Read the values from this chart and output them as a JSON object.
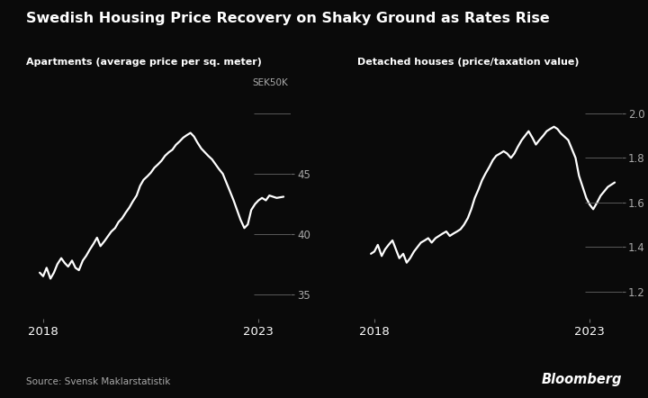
{
  "title": "Swedish Housing Price Recovery on Shaky Ground as Rates Rise",
  "left_subtitle": "Apartments (average price per sq. meter)",
  "right_subtitle": "Detached houses (price/taxation value)",
  "source": "Source: Svensk Maklarstatistik",
  "bloomberg": "Bloomberg",
  "background_color": "#0a0a0a",
  "text_color": "#ffffff",
  "line_color": "#ffffff",
  "axis_color": "#666666",
  "tick_label_color": "#aaaaaa",
  "left_yticks": [
    35,
    40,
    45
  ],
  "left_ytick_labels": [
    "35",
    "40",
    "45"
  ],
  "left_ylabel_top": "SEK50K",
  "left_ylim": [
    33.0,
    51.5
  ],
  "right_yticks": [
    1.2,
    1.4,
    1.6,
    1.8,
    2.0
  ],
  "right_ytick_labels": [
    "1.2",
    "1.4",
    "1.6",
    "1.8",
    "2.0"
  ],
  "right_ylim": [
    1.08,
    2.08
  ],
  "left_x": [
    2017.92,
    2018.0,
    2018.08,
    2018.17,
    2018.25,
    2018.33,
    2018.42,
    2018.5,
    2018.58,
    2018.67,
    2018.75,
    2018.83,
    2018.92,
    2019.0,
    2019.08,
    2019.17,
    2019.25,
    2019.33,
    2019.42,
    2019.5,
    2019.58,
    2019.67,
    2019.75,
    2019.83,
    2019.92,
    2020.0,
    2020.08,
    2020.17,
    2020.25,
    2020.33,
    2020.42,
    2020.5,
    2020.58,
    2020.67,
    2020.75,
    2020.83,
    2020.92,
    2021.0,
    2021.08,
    2021.17,
    2021.25,
    2021.33,
    2021.42,
    2021.5,
    2021.58,
    2021.67,
    2021.75,
    2021.83,
    2021.92,
    2022.0,
    2022.08,
    2022.17,
    2022.25,
    2022.33,
    2022.42,
    2022.5,
    2022.58,
    2022.67,
    2022.75,
    2022.83,
    2022.92,
    2023.0,
    2023.08,
    2023.17,
    2023.25,
    2023.42,
    2023.58
  ],
  "left_y": [
    36.8,
    36.5,
    37.2,
    36.3,
    36.8,
    37.5,
    38.0,
    37.6,
    37.3,
    37.8,
    37.2,
    37.0,
    37.8,
    38.2,
    38.7,
    39.2,
    39.7,
    39.0,
    39.4,
    39.8,
    40.2,
    40.5,
    41.0,
    41.3,
    41.8,
    42.2,
    42.7,
    43.2,
    44.0,
    44.5,
    44.8,
    45.1,
    45.5,
    45.8,
    46.1,
    46.5,
    46.8,
    47.0,
    47.4,
    47.7,
    48.0,
    48.2,
    48.4,
    48.1,
    47.6,
    47.1,
    46.8,
    46.5,
    46.2,
    45.8,
    45.4,
    45.0,
    44.3,
    43.6,
    42.8,
    42.0,
    41.2,
    40.5,
    40.8,
    42.0,
    42.5,
    42.8,
    43.0,
    42.8,
    43.2,
    43.0,
    43.1
  ],
  "right_x": [
    2017.92,
    2018.0,
    2018.08,
    2018.17,
    2018.25,
    2018.33,
    2018.42,
    2018.5,
    2018.58,
    2018.67,
    2018.75,
    2018.83,
    2018.92,
    2019.0,
    2019.08,
    2019.17,
    2019.25,
    2019.33,
    2019.42,
    2019.5,
    2019.58,
    2019.67,
    2019.75,
    2019.83,
    2019.92,
    2020.0,
    2020.08,
    2020.17,
    2020.25,
    2020.33,
    2020.42,
    2020.5,
    2020.58,
    2020.67,
    2020.75,
    2020.83,
    2020.92,
    2021.0,
    2021.08,
    2021.17,
    2021.25,
    2021.33,
    2021.42,
    2021.5,
    2021.58,
    2021.67,
    2021.75,
    2021.83,
    2021.92,
    2022.0,
    2022.08,
    2022.17,
    2022.25,
    2022.33,
    2022.5,
    2022.67,
    2022.75,
    2022.92,
    2023.0,
    2023.08,
    2023.17,
    2023.25,
    2023.42,
    2023.58
  ],
  "right_y": [
    1.37,
    1.38,
    1.41,
    1.36,
    1.39,
    1.41,
    1.43,
    1.39,
    1.35,
    1.37,
    1.33,
    1.35,
    1.38,
    1.4,
    1.42,
    1.43,
    1.44,
    1.42,
    1.44,
    1.45,
    1.46,
    1.47,
    1.45,
    1.46,
    1.47,
    1.48,
    1.5,
    1.53,
    1.57,
    1.62,
    1.66,
    1.7,
    1.73,
    1.76,
    1.79,
    1.81,
    1.82,
    1.83,
    1.82,
    1.8,
    1.82,
    1.85,
    1.88,
    1.9,
    1.92,
    1.89,
    1.86,
    1.88,
    1.9,
    1.92,
    1.93,
    1.94,
    1.93,
    1.91,
    1.88,
    1.8,
    1.72,
    1.62,
    1.59,
    1.57,
    1.6,
    1.63,
    1.67,
    1.69
  ],
  "xtick_positions": [
    2018,
    2023
  ],
  "xtick_labels": [
    "2018",
    "2023"
  ],
  "xlim": [
    2017.6,
    2023.75
  ]
}
